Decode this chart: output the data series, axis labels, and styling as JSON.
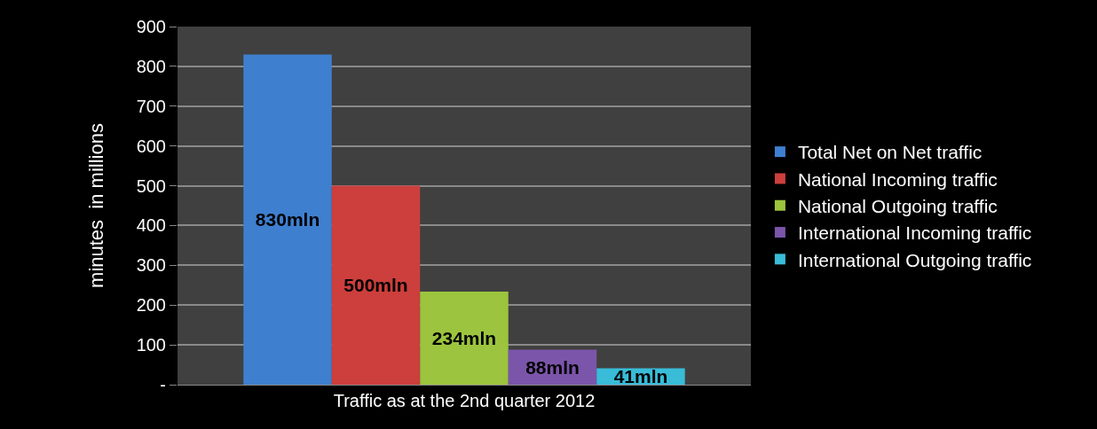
{
  "chart_data": {
    "type": "bar",
    "ylabel": "minutes  in millions",
    "categories": [
      "Traffic as at the 2nd quarter 2012"
    ],
    "series": [
      {
        "name": "Total Net on Net traffic",
        "color": "#3f7fcf",
        "values": [
          830
        ],
        "value_labels": [
          "830mln"
        ]
      },
      {
        "name": "National Incoming traffic",
        "color": "#cc3f3c",
        "values": [
          500
        ],
        "value_labels": [
          "500mln"
        ]
      },
      {
        "name": "National Outgoing traffic",
        "color": "#9cc43e",
        "values": [
          234
        ],
        "value_labels": [
          "234mln"
        ]
      },
      {
        "name": "International Incoming traffic",
        "color": "#7b55aa",
        "values": [
          88
        ],
        "value_labels": [
          "88mln"
        ]
      },
      {
        "name": "International Outgoing traffic",
        "color": "#39bcd8",
        "values": [
          41
        ],
        "value_labels": [
          "41mln"
        ]
      }
    ],
    "ylim": [
      0,
      900
    ],
    "yticks": [
      {
        "value": 0,
        "label": "-"
      },
      100,
      200,
      300,
      400,
      500,
      600,
      700,
      800,
      900
    ],
    "grid": "y",
    "legend": "right"
  }
}
